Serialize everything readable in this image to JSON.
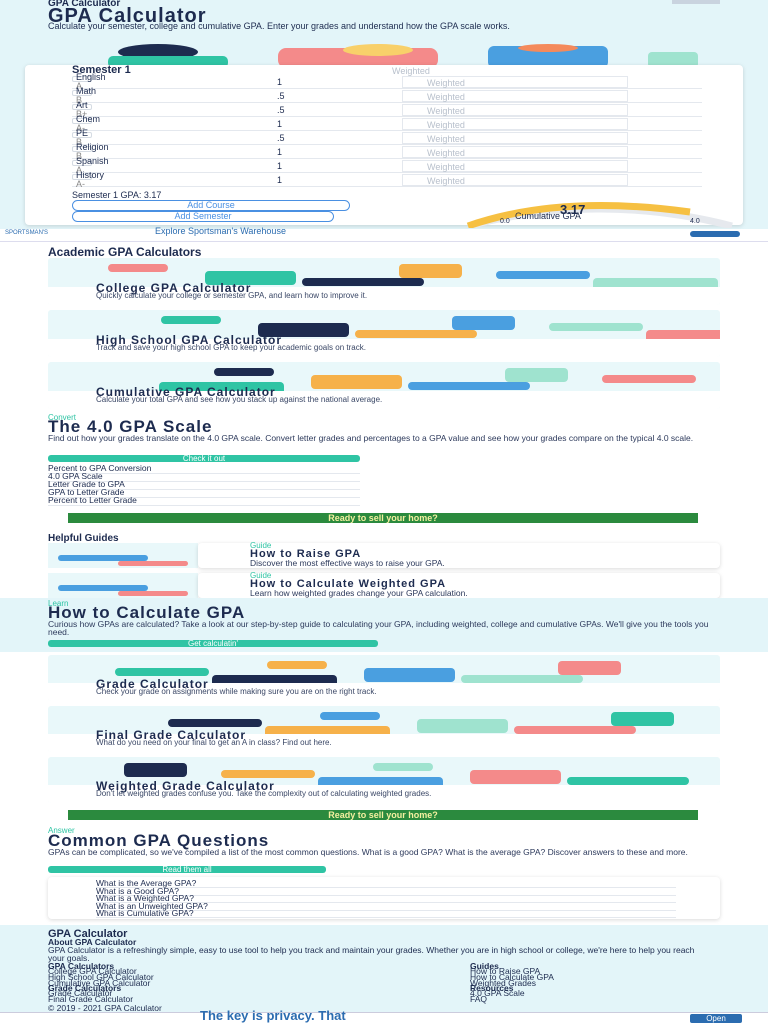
{
  "header": {
    "brand": "GPA Calculator"
  },
  "hero": {
    "title": "GPA Calculator",
    "subtitle": "Calculate your semester, college and cumulative GPA. Enter your grades and understand how the GPA scale works."
  },
  "calculator": {
    "semester": "Semester 1",
    "weighted_label": "Weighted",
    "courses": [
      {
        "name": "English",
        "grade": "A",
        "credits": "1"
      },
      {
        "name": "Math",
        "grade": "B",
        "credits": ".5"
      },
      {
        "name": "Art",
        "grade": "B+",
        "credits": ".5"
      },
      {
        "name": "Chem",
        "grade": "A-",
        "credits": "1"
      },
      {
        "name": "PE",
        "grade": "B",
        "credits": ".5"
      },
      {
        "name": "Religion",
        "grade": "B",
        "credits": "1"
      },
      {
        "name": "Spanish",
        "grade": "A",
        "credits": "1"
      },
      {
        "name": "History",
        "grade": "A-",
        "credits": "1"
      }
    ],
    "semester_gpa": "Semester 1 GPA: 3.17",
    "add_course": "Add Course",
    "add_semester": "Add Semester",
    "gauge": {
      "value": "3.17",
      "label": "Cumulative GPA",
      "min": "0.0",
      "max": "4.0"
    }
  },
  "ads": {
    "top": {
      "brand": "SPORTSMAN'S",
      "text": "Explore Sportsman's Warehouse"
    },
    "middle": "Ready to sell your home?",
    "bottom": {
      "text": "The key is privacy. That",
      "button": "Open"
    }
  },
  "academic": {
    "title": "Academic GPA Calculators",
    "cards": [
      {
        "title": "College GPA Calculator",
        "text": "Quickly calculate your college or semester GPA, and learn how to improve it."
      },
      {
        "title": "High School GPA Calculator",
        "text": "Track and save your high school GPA to keep your academic goals on track."
      },
      {
        "title": "Cumulative GPA Calculator",
        "text": "Calculate your total GPA and see how you stack up against the national average."
      }
    ]
  },
  "convert": {
    "eyebrow": "Convert",
    "title": "The 4.0 GPA Scale",
    "text": "Find out how your grades translate on the 4.0 GPA scale. Convert letter grades and percentages to a GPA value and see how your grades compare on the typical 4.0 scale.",
    "button": "Check it out",
    "links": [
      "Percent to GPA Conversion",
      "4.0 GPA Scale",
      "Letter Grade to GPA",
      "GPA to Letter Grade",
      "Percent to Letter Grade"
    ]
  },
  "guides": {
    "title": "Helpful Guides",
    "items": [
      {
        "tag": "Guide",
        "title": "How to Raise GPA",
        "text": "Discover the most effective ways to raise your GPA."
      },
      {
        "tag": "Guide",
        "title": "How to Calculate Weighted GPA",
        "text": "Learn how weighted grades change your GPA calculation."
      }
    ]
  },
  "learn": {
    "eyebrow": "Learn",
    "title": "How to Calculate GPA",
    "text": "Curious how GPAs are calculated? Take a look at our step-by-step guide to calculating your GPA, including weighted, college and cumulative GPAs. We'll give you the tools you need.",
    "button": "Get calculatin'",
    "cards": [
      {
        "title": "Grade Calculator",
        "text": "Check your grade on assignments while making sure you are on the right track."
      },
      {
        "title": "Final Grade Calculator",
        "text": "What do you need on your final to get an A in class? Find out here."
      },
      {
        "title": "Weighted Grade Calculator",
        "text": "Don't let weighted grades confuse you. Take the complexity out of calculating weighted grades."
      }
    ]
  },
  "faq": {
    "eyebrow": "Answer",
    "title": "Common GPA Questions",
    "text": "GPAs can be complicated, so we've compiled a list of the most common questions. What is a good GPA? What is the average GPA? Discover answers to these and more.",
    "button": "Read them all",
    "questions": [
      "What is the Average GPA?",
      "What is a Good GPA?",
      "What is a Weighted GPA?",
      "What is an Unweighted GPA?",
      "What is Cumulative GPA?"
    ]
  },
  "footer": {
    "brand": "GPA Calculator",
    "about_title": "About GPA Calculator",
    "about_text": "GPA Calculator is a refreshingly simple, easy to use tool to help you track and maintain your grades. Whether you are in high school or college, we're here to help you reach your goals.",
    "columns": [
      {
        "title": "GPA Calculators",
        "links": [
          "College GPA Calculator",
          "High School GPA Calculator",
          "Cumulative GPA Calculator"
        ]
      },
      {
        "title": "Guides",
        "links": [
          "How to Raise GPA",
          "How to Calculate GPA",
          "Weighted Grades"
        ]
      },
      {
        "title": "Grade Calculators",
        "links": [
          "Grade Calculator",
          "Final Grade Calculator"
        ]
      },
      {
        "title": "Resources",
        "links": [
          "4.0 GPA Scale",
          "FAQ"
        ]
      }
    ],
    "copyright": "© 2019 - 2021 GPA Calculator"
  }
}
